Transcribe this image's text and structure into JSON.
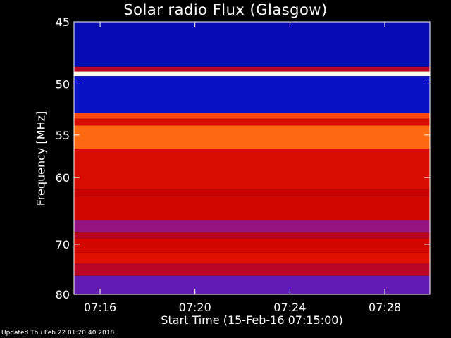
{
  "title": "Solar radio Flux (Glasgow)",
  "footer": "Updated Thu Feb 22 01:20:40 2018",
  "chart_data": {
    "type": "heatmap",
    "title": "Solar radio Flux (Glasgow)",
    "xlabel": "Start Time (15-Feb-16 07:15:00)",
    "ylabel": "Frequency [MHz]",
    "x_ticks": [
      "07:16",
      "07:20",
      "07:24",
      "07:28"
    ],
    "x_tick_minutes": [
      1,
      5,
      9,
      13
    ],
    "xlim_minutes": [
      -0.1,
      14.9
    ],
    "y_ticks": [
      45,
      50,
      55,
      60,
      70,
      80
    ],
    "ylim": [
      45,
      80
    ],
    "y_scale": "reciprocal",
    "intensity_bands": [
      {
        "f0": 45.0,
        "f1": 48.5,
        "level": 0.05
      },
      {
        "f0": 48.5,
        "f1": 48.9,
        "level": 0.5
      },
      {
        "f0": 48.9,
        "f1": 49.3,
        "level": 1.0
      },
      {
        "f0": 49.3,
        "f1": 52.7,
        "level": 0.08
      },
      {
        "f0": 52.7,
        "f1": 53.3,
        "level": 0.75
      },
      {
        "f0": 53.3,
        "f1": 54.0,
        "level": 0.6
      },
      {
        "f0": 54.0,
        "f1": 56.5,
        "level": 0.78
      },
      {
        "f0": 56.5,
        "f1": 61.5,
        "level": 0.6
      },
      {
        "f0": 61.5,
        "f1": 62.5,
        "level": 0.55
      },
      {
        "f0": 62.5,
        "f1": 66.0,
        "level": 0.58
      },
      {
        "f0": 66.0,
        "f1": 68.0,
        "level": 0.38
      },
      {
        "f0": 68.0,
        "f1": 69.0,
        "level": 0.5
      },
      {
        "f0": 69.0,
        "f1": 71.5,
        "level": 0.58
      },
      {
        "f0": 71.5,
        "f1": 73.5,
        "level": 0.62
      },
      {
        "f0": 73.5,
        "f1": 76.0,
        "level": 0.5
      },
      {
        "f0": 76.0,
        "f1": 80.0,
        "level": 0.3
      }
    ],
    "colormap": "blue-red-yellow-white"
  }
}
